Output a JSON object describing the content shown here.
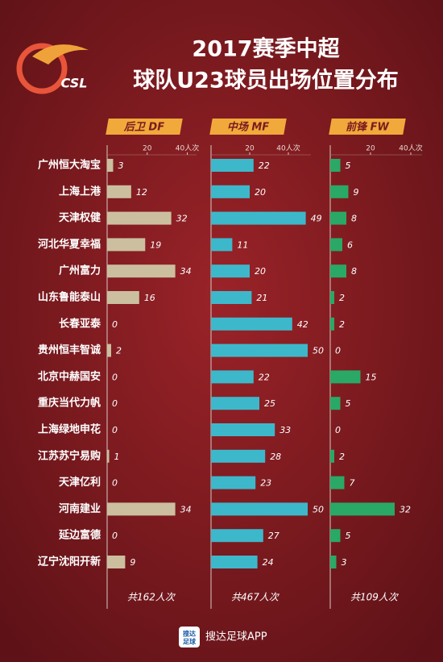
{
  "title": "2017赛季中超",
  "subtitle": "球队U23球员出场位置分布",
  "logo": "CSL",
  "footer": {
    "icon_lines": [
      "搜达",
      "足球"
    ],
    "text": "搜达足球APP"
  },
  "chart_data": [
    {
      "type": "bar",
      "header": "后卫 DF",
      "color": "#cbbf9f",
      "total": "共162人次",
      "categories": [
        "广州恒大淘宝",
        "上海上港",
        "天津权健",
        "河北华夏幸福",
        "广州富力",
        "山东鲁能泰山",
        "长春亚泰",
        "贵州恒丰智诚",
        "北京中赫国安",
        "重庆当代力帆",
        "上海绿地申花",
        "江苏苏宁易购",
        "天津亿利",
        "河南建业",
        "延边富德",
        "辽宁沈阳开新"
      ],
      "values": [
        3,
        12,
        32,
        19,
        34,
        16,
        0,
        2,
        0,
        0,
        0,
        1,
        0,
        34,
        0,
        9
      ],
      "xlim": [
        0,
        43
      ],
      "xticks": [
        20,
        {
          "value": 40,
          "label": "40人次"
        }
      ]
    },
    {
      "type": "bar",
      "header": "中场 MF",
      "color": "#3db8cb",
      "total": "共467人次",
      "values": [
        22,
        20,
        49,
        11,
        20,
        21,
        42,
        50,
        22,
        25,
        33,
        28,
        23,
        50,
        27,
        24
      ],
      "xlim": [
        0,
        50
      ],
      "xticks": [
        20,
        {
          "value": 40,
          "label": "40人次"
        }
      ]
    },
    {
      "type": "bar",
      "header": "前锋 FW",
      "color": "#2aa866",
      "total": "共109人次",
      "values": [
        5,
        9,
        8,
        6,
        8,
        2,
        2,
        0,
        15,
        5,
        0,
        2,
        7,
        32,
        5,
        3
      ],
      "xlim": [
        0,
        44
      ],
      "xticks": [
        20,
        {
          "value": 40,
          "label": "40人次"
        }
      ]
    }
  ]
}
